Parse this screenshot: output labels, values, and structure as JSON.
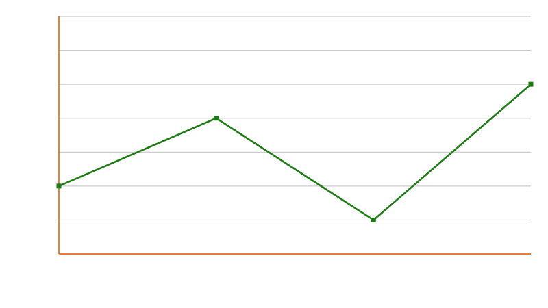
{
  "chart_data": {
    "type": "line",
    "x": [
      0,
      1,
      2,
      3
    ],
    "series": [
      {
        "values": [
          2,
          4,
          1,
          5
        ]
      }
    ],
    "ylim": [
      0,
      7
    ],
    "y_gridlines": [
      1,
      2,
      3,
      4,
      5,
      6,
      7
    ],
    "grid": true,
    "axis_color": "#ED7D31",
    "grid_color": "#BFBFBF",
    "line_color": "#1E7B15",
    "marker_color": "#1E7B15",
    "background_color": "#FFFFFF"
  }
}
